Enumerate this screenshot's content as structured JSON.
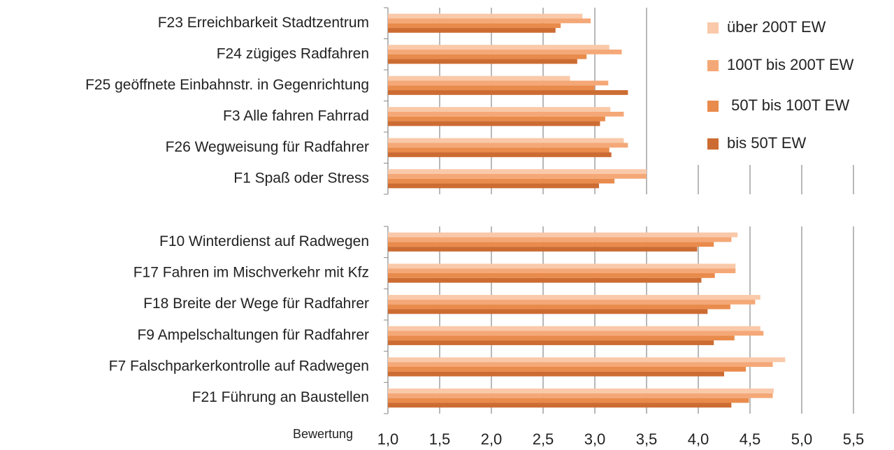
{
  "chart_data": [
    {
      "type": "bar",
      "orientation": "horizontal",
      "categories": [
        "F23 Erreichbarkeit Stadtzentrum",
        "F24 zügiges Radfahren",
        "F25 geöffnete Einbahnstr. in Gegenrichtung",
        "F3  Alle fahren Fahrrad",
        "F26 Wegweisung für Radfahrer",
        "F1 Spaß oder Stress"
      ],
      "series": [
        {
          "name": "über 200T EW",
          "color": "#f9c9a9",
          "values": [
            2.88,
            3.14,
            2.76,
            3.15,
            3.28,
            3.5
          ]
        },
        {
          "name": "100T bis 200T EW",
          "color": "#f5a877",
          "values": [
            2.96,
            3.26,
            3.13,
            3.28,
            3.32,
            3.5
          ]
        },
        {
          "name": " 50T bis 100T EW",
          "color": "#e98b4c",
          "values": [
            2.67,
            2.92,
            3.0,
            3.1,
            3.14,
            3.19
          ]
        },
        {
          "name": "bis 50T EW",
          "color": "#cc6c33",
          "values": [
            2.62,
            2.83,
            3.32,
            3.05,
            3.16,
            3.04
          ]
        }
      ],
      "xlim": [
        1.0,
        5.5
      ],
      "xticks": [
        1.0,
        1.5,
        2.0,
        2.5,
        3.0,
        3.5,
        4.0,
        4.5,
        5.0,
        5.5
      ],
      "grid": true,
      "legend": "upper right"
    },
    {
      "type": "bar",
      "orientation": "horizontal",
      "xlabel": "Bewertung",
      "categories": [
        "F10 Winterdienst auf Radwegen",
        "F17 Fahren im Mischverkehr mit Kfz",
        "F18 Breite der Wege für Radfahrer",
        "F9  Ampelschaltungen für Radfahrer",
        "F7  Falschparkerkontrolle auf Radwegen",
        "F21 Führung an Baustellen"
      ],
      "series": [
        {
          "values": [
            4.38,
            4.36,
            4.6,
            4.6,
            4.84,
            4.73
          ]
        },
        {
          "values": [
            4.32,
            4.36,
            4.55,
            4.63,
            4.72,
            4.72
          ]
        },
        {
          "values": [
            4.15,
            4.16,
            4.31,
            4.35,
            4.46,
            4.49
          ]
        },
        {
          "values": [
            3.99,
            4.03,
            4.09,
            4.15,
            4.25,
            4.32
          ]
        }
      ],
      "xlim": [
        1.0,
        5.5
      ],
      "xticks": [
        {
          "value": 1.0,
          "label": "1,0"
        },
        {
          "value": 1.5,
          "label": "1,5"
        },
        {
          "value": 2.0,
          "label": "2,0"
        },
        {
          "value": 2.5,
          "label": "2,5"
        },
        {
          "value": 3.0,
          "label": "3,0"
        },
        {
          "value": 3.5,
          "label": "3,5"
        },
        {
          "value": 4.0,
          "label": "4,0"
        },
        {
          "value": 4.5,
          "label": "4,5"
        },
        {
          "value": 5.0,
          "label": "5,0"
        },
        {
          "value": 5.5,
          "label": "5,5"
        }
      ],
      "grid": true
    }
  ]
}
